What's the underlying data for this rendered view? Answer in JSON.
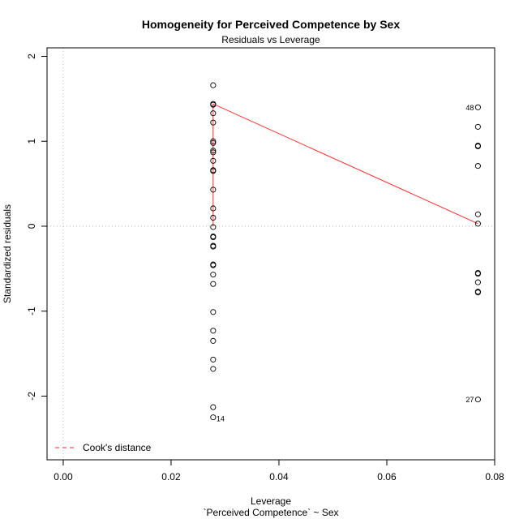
{
  "chart_data": {
    "type": "scatter",
    "title": "Homogeneity for Perceived Competence by Sex",
    "subtitle": "Residuals vs Leverage",
    "xlabel": "Leverage",
    "xlabel2": "`Perceived Competence` ~ Sex",
    "ylabel": "Standardized residuals",
    "xlim": [
      -0.003,
      0.08
    ],
    "ylim": [
      -2.75,
      2.1
    ],
    "xticks": [
      {
        "value": 0.0,
        "label": "0.00"
      },
      {
        "value": 0.02,
        "label": "0.02"
      },
      {
        "value": 0.04,
        "label": "0.04"
      },
      {
        "value": 0.06,
        "label": "0.06"
      },
      {
        "value": 0.08,
        "label": "0.08"
      }
    ],
    "yticks": [
      {
        "value": -2,
        "label": "-2"
      },
      {
        "value": -1,
        "label": "-1"
      },
      {
        "value": 0,
        "label": "0"
      },
      {
        "value": 1,
        "label": "1"
      },
      {
        "value": 2,
        "label": "2"
      }
    ],
    "grid": false,
    "reference_lines": {
      "h": 0,
      "v": 0,
      "style": "dotted",
      "color": "#bbbbbb"
    },
    "points": [
      {
        "x": 0.0278,
        "y": 1.66
      },
      {
        "x": 0.0278,
        "y": 1.44
      },
      {
        "x": 0.0278,
        "y": 1.43
      },
      {
        "x": 0.0278,
        "y": 1.33
      },
      {
        "x": 0.0278,
        "y": 1.22
      },
      {
        "x": 0.0278,
        "y": 1.0
      },
      {
        "x": 0.0278,
        "y": 0.98
      },
      {
        "x": 0.0278,
        "y": 0.89
      },
      {
        "x": 0.0278,
        "y": 0.87
      },
      {
        "x": 0.0278,
        "y": 0.77
      },
      {
        "x": 0.0278,
        "y": 0.66
      },
      {
        "x": 0.0278,
        "y": 0.65
      },
      {
        "x": 0.0278,
        "y": 0.43
      },
      {
        "x": 0.0278,
        "y": 0.21
      },
      {
        "x": 0.0278,
        "y": 0.1
      },
      {
        "x": 0.0278,
        "y": -0.01
      },
      {
        "x": 0.0278,
        "y": -0.12
      },
      {
        "x": 0.0278,
        "y": -0.13
      },
      {
        "x": 0.0278,
        "y": -0.23
      },
      {
        "x": 0.0278,
        "y": -0.24
      },
      {
        "x": 0.0278,
        "y": -0.45
      },
      {
        "x": 0.0278,
        "y": -0.46
      },
      {
        "x": 0.0278,
        "y": -0.57
      },
      {
        "x": 0.0278,
        "y": -0.68
      },
      {
        "x": 0.0278,
        "y": -1.01
      },
      {
        "x": 0.0278,
        "y": -1.23
      },
      {
        "x": 0.0278,
        "y": -1.35
      },
      {
        "x": 0.0278,
        "y": -1.57
      },
      {
        "x": 0.0278,
        "y": -1.68
      },
      {
        "x": 0.0278,
        "y": -2.13
      },
      {
        "x": 0.0278,
        "y": -2.25,
        "label": "14"
      },
      {
        "x": 0.0769,
        "y": 1.4,
        "label": "48"
      },
      {
        "x": 0.0769,
        "y": 1.17
      },
      {
        "x": 0.0769,
        "y": 0.95
      },
      {
        "x": 0.0769,
        "y": 0.94
      },
      {
        "x": 0.0769,
        "y": 0.71
      },
      {
        "x": 0.0769,
        "y": 0.14
      },
      {
        "x": 0.0769,
        "y": 0.03
      },
      {
        "x": 0.0769,
        "y": -0.55
      },
      {
        "x": 0.0769,
        "y": -0.56
      },
      {
        "x": 0.0769,
        "y": -0.66
      },
      {
        "x": 0.0769,
        "y": -0.77
      },
      {
        "x": 0.0769,
        "y": -0.78
      },
      {
        "x": 0.0769,
        "y": -2.04,
        "label": "27"
      }
    ],
    "smooth_line": {
      "color": "#ff2a2a",
      "points": [
        {
          "x": 0.0278,
          "y": 0.0
        },
        {
          "x": 0.0278,
          "y": 1.44
        },
        {
          "x": 0.0769,
          "y": 0.03
        }
      ]
    },
    "legend": {
      "position": "bottom-left",
      "entries": [
        {
          "label": "Cook's distance",
          "color": "#ff2a2a",
          "style": "dashed"
        }
      ]
    }
  }
}
